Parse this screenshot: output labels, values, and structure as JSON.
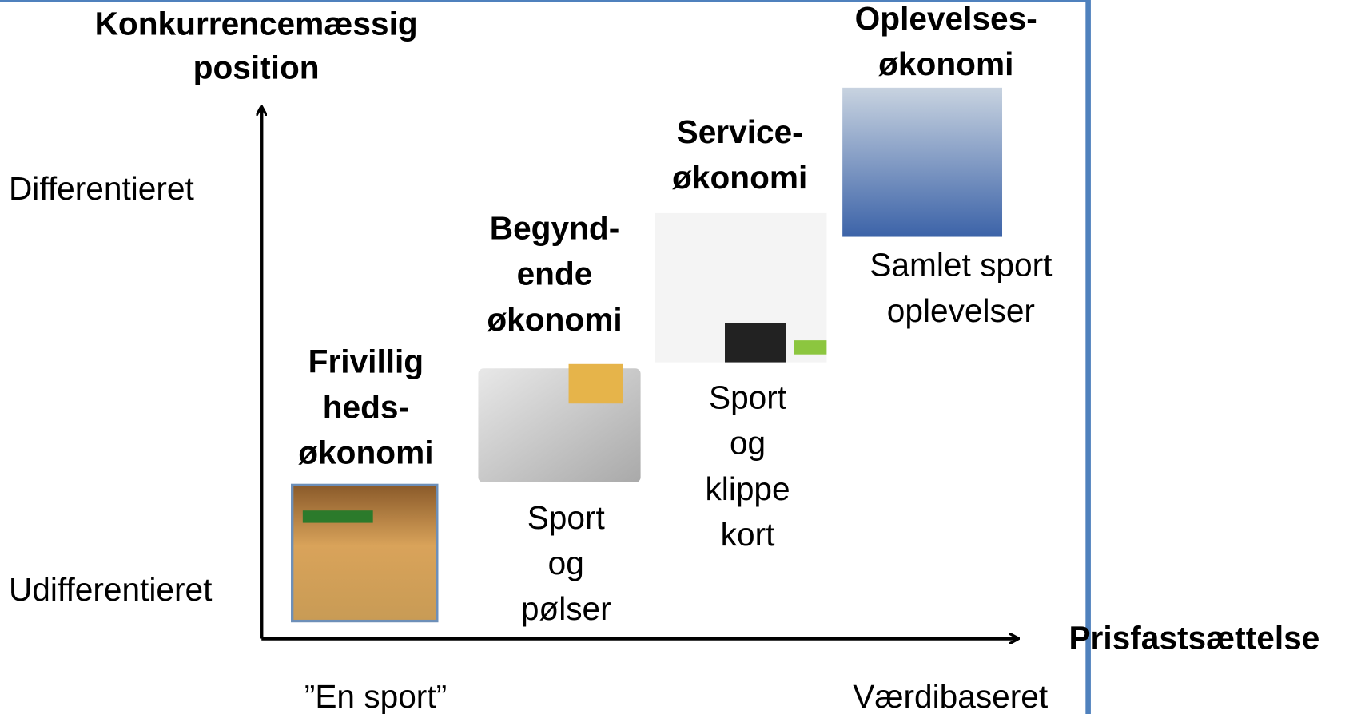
{
  "y_axis": {
    "title": [
      "Konkurrencemæssig",
      "position"
    ],
    "high": "Differentieret",
    "low": "Udifferentieret"
  },
  "x_axis": {
    "title": "Prisfastsættelse",
    "low": "”En sport”",
    "high": "Værdibaseret"
  },
  "stages": [
    {
      "title": [
        "Frivillig",
        "heds-",
        "økonomi"
      ]
    },
    {
      "title": [
        "Begynd-",
        "ende",
        "økonomi"
      ],
      "description": [
        "Sport",
        "og",
        "pølser"
      ]
    },
    {
      "title": [
        "Service-",
        "økonomi"
      ],
      "description": [
        "Sport",
        "og",
        "klippe",
        "kort"
      ]
    },
    {
      "title": [
        "Oplevelses-",
        "økonomi"
      ],
      "description": [
        "Samlet sport",
        "oplevelser"
      ]
    }
  ]
}
